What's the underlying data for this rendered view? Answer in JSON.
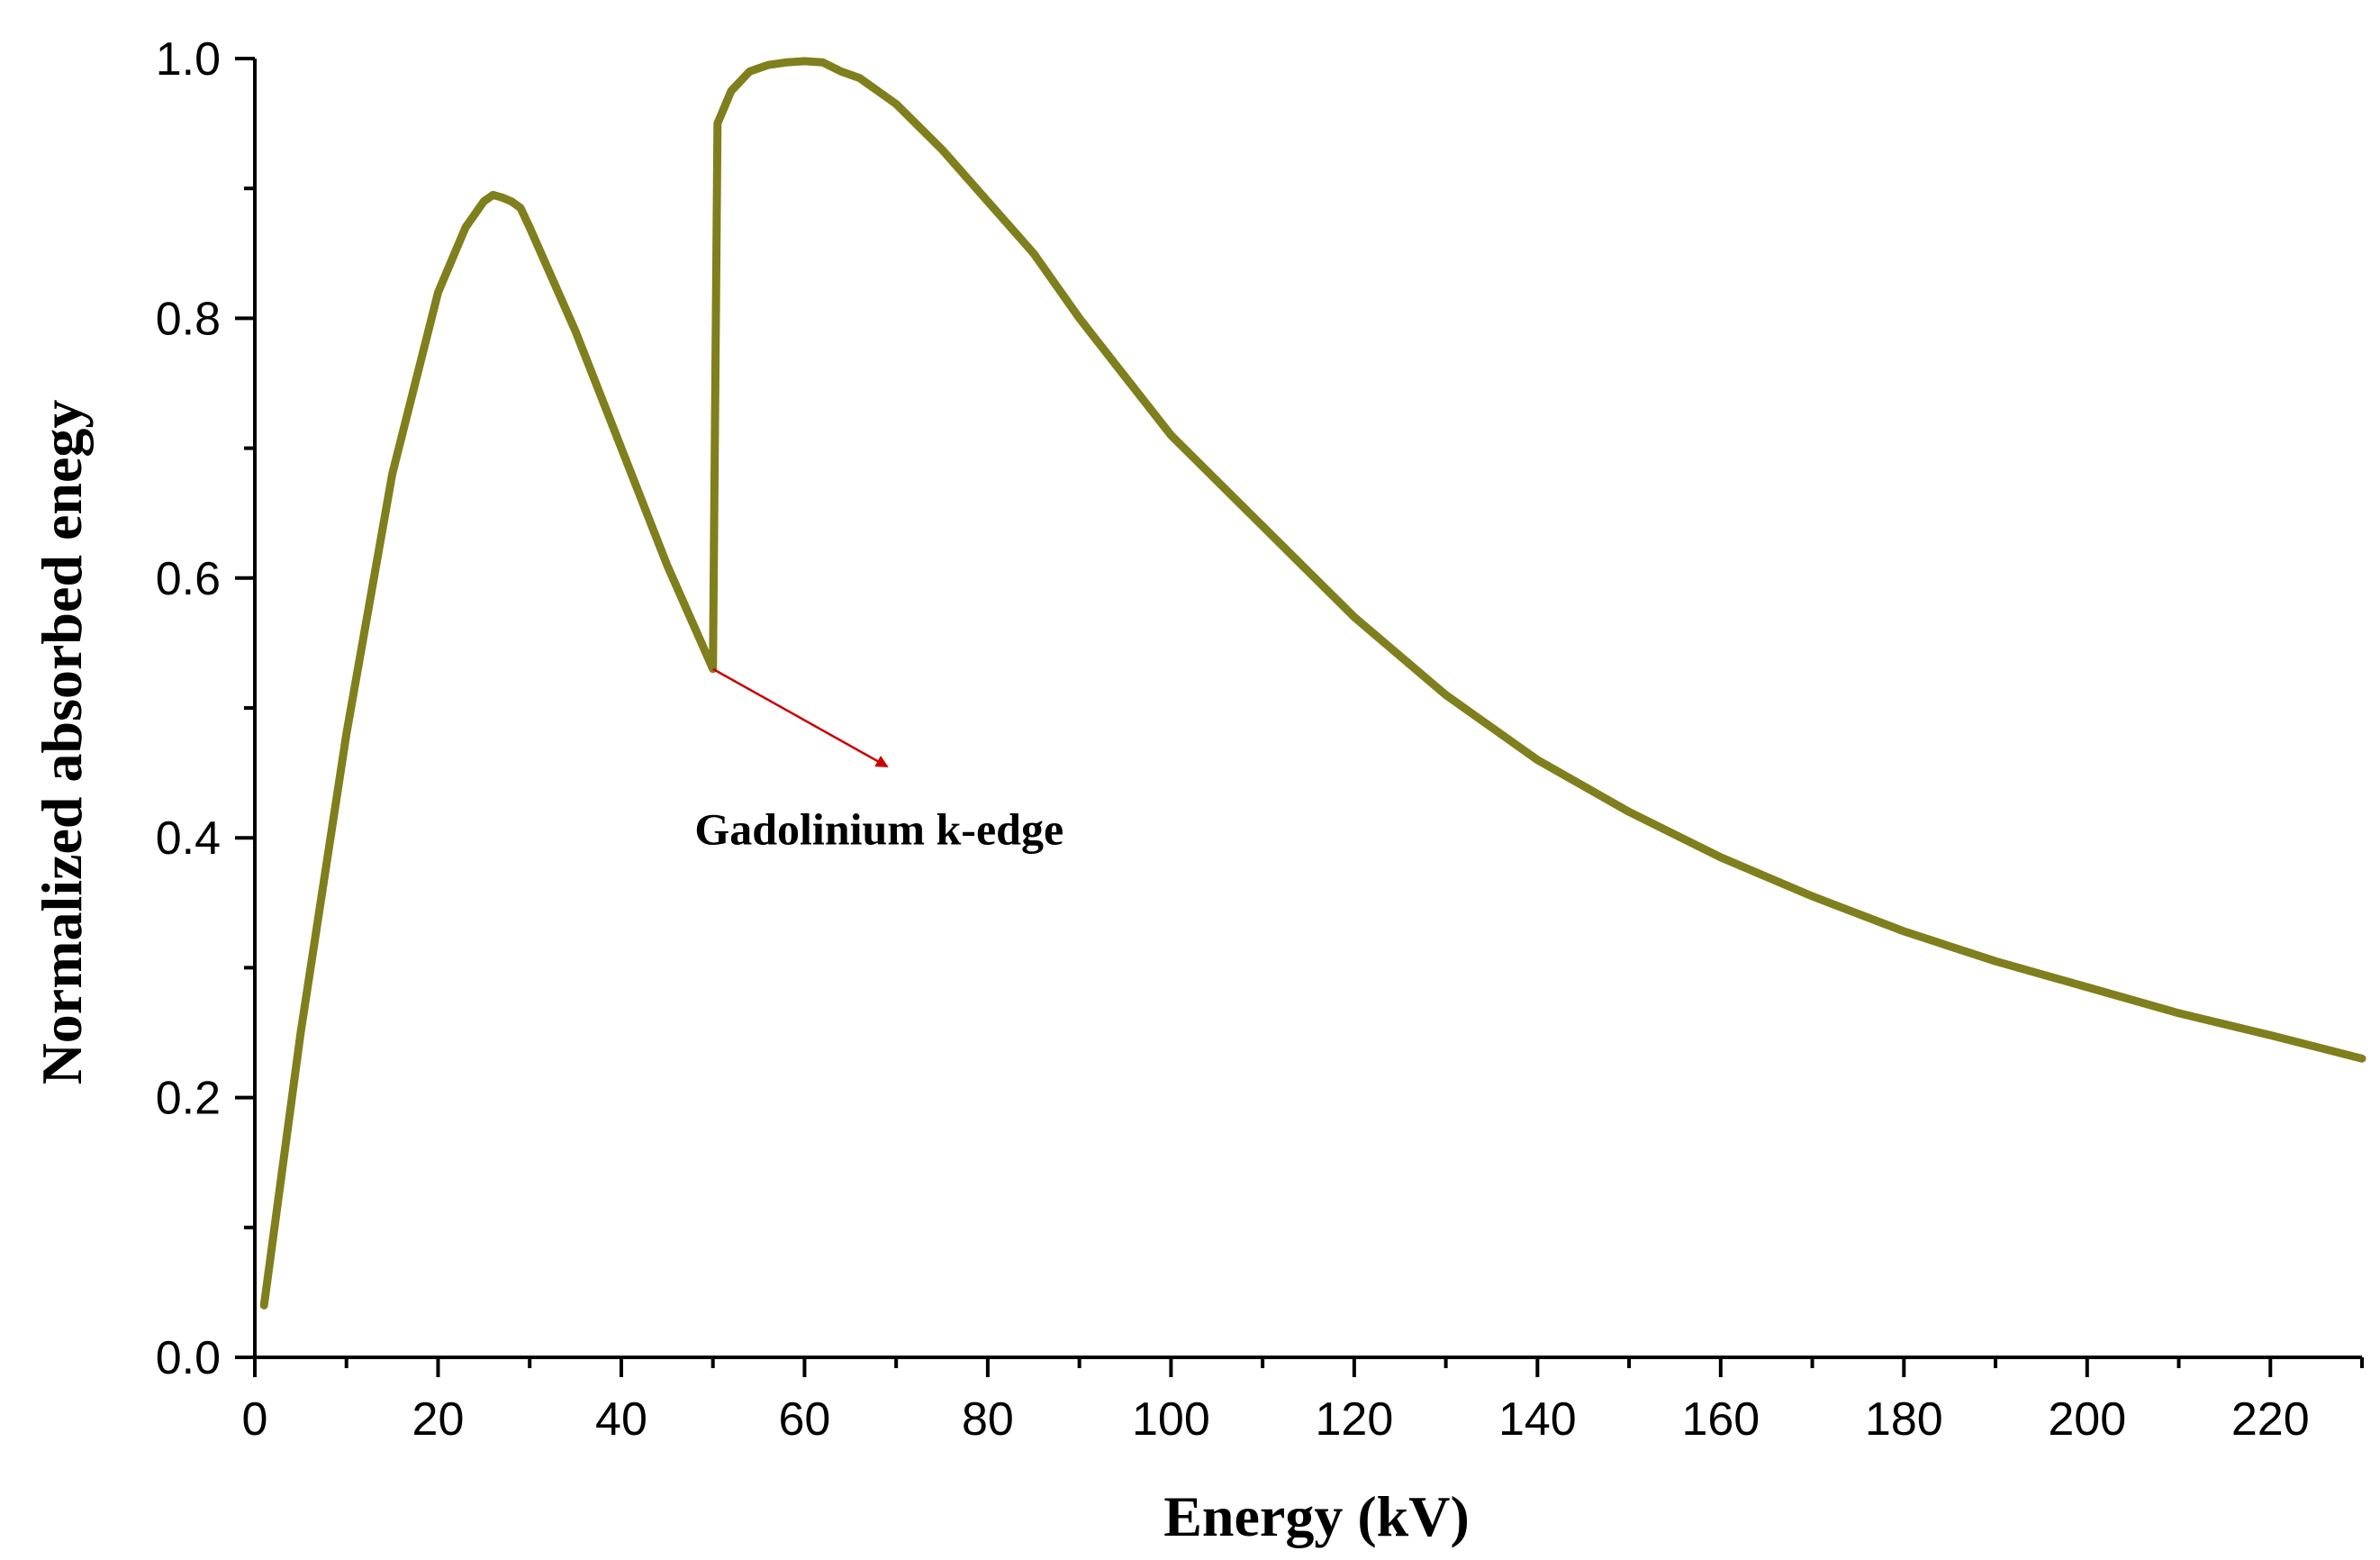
{
  "chart_data": {
    "type": "line",
    "title": "",
    "xlabel": "Energy (kV)",
    "ylabel": "Normalized absorbed enegy",
    "xlim": [
      0,
      230
    ],
    "ylim": [
      0,
      1.0
    ],
    "x_major_ticks": [
      0,
      20,
      40,
      60,
      80,
      100,
      120,
      140,
      160,
      180,
      200,
      220
    ],
    "x_minor_ticks": [
      10,
      30,
      50,
      70,
      90,
      110,
      130,
      150,
      170,
      190,
      210,
      230
    ],
    "y_major_ticks": [
      0.0,
      0.2,
      0.4,
      0.6,
      0.8,
      1.0
    ],
    "y_minor_ticks": [
      0.1,
      0.3,
      0.5,
      0.7,
      0.9
    ],
    "x_tick_labels": [
      "0",
      "20",
      "40",
      "60",
      "80",
      "100",
      "120",
      "140",
      "160",
      "180",
      "200",
      "220"
    ],
    "y_tick_labels": [
      "0.0",
      "0.2",
      "0.4",
      "0.6",
      "0.8",
      "1.0"
    ],
    "grid": false,
    "series": [
      {
        "name": "Normalized absorbed energy",
        "color": "#7f7f1d",
        "x": [
          1,
          5,
          10,
          15,
          20,
          23,
          25,
          26,
          27,
          28,
          29,
          30,
          35,
          40,
          45,
          50,
          50.5,
          52,
          54,
          56,
          58,
          60,
          62,
          64,
          66,
          68,
          70,
          75,
          80,
          85,
          90,
          95,
          100,
          110,
          120,
          130,
          140,
          150,
          160,
          170,
          180,
          190,
          200,
          210,
          220,
          230
        ],
        "y": [
          0.04,
          0.25,
          0.48,
          0.68,
          0.82,
          0.87,
          0.89,
          0.895,
          0.893,
          0.89,
          0.885,
          0.87,
          0.79,
          0.7,
          0.61,
          0.53,
          0.95,
          0.975,
          0.99,
          0.995,
          0.997,
          0.998,
          0.997,
          0.99,
          0.985,
          0.975,
          0.965,
          0.93,
          0.89,
          0.85,
          0.8,
          0.755,
          0.71,
          0.64,
          0.57,
          0.51,
          0.46,
          0.42,
          0.385,
          0.355,
          0.328,
          0.305,
          0.285,
          0.265,
          0.248,
          0.23
        ]
      }
    ],
    "annotations": [
      {
        "text": "Gadolinium k-edge",
        "arrow_from": [
          50,
          0.53
        ],
        "arrow_to": [
          69,
          0.455
        ],
        "text_at": [
          48,
          0.395
        ],
        "arrow_color": "#cc0000"
      }
    ]
  }
}
